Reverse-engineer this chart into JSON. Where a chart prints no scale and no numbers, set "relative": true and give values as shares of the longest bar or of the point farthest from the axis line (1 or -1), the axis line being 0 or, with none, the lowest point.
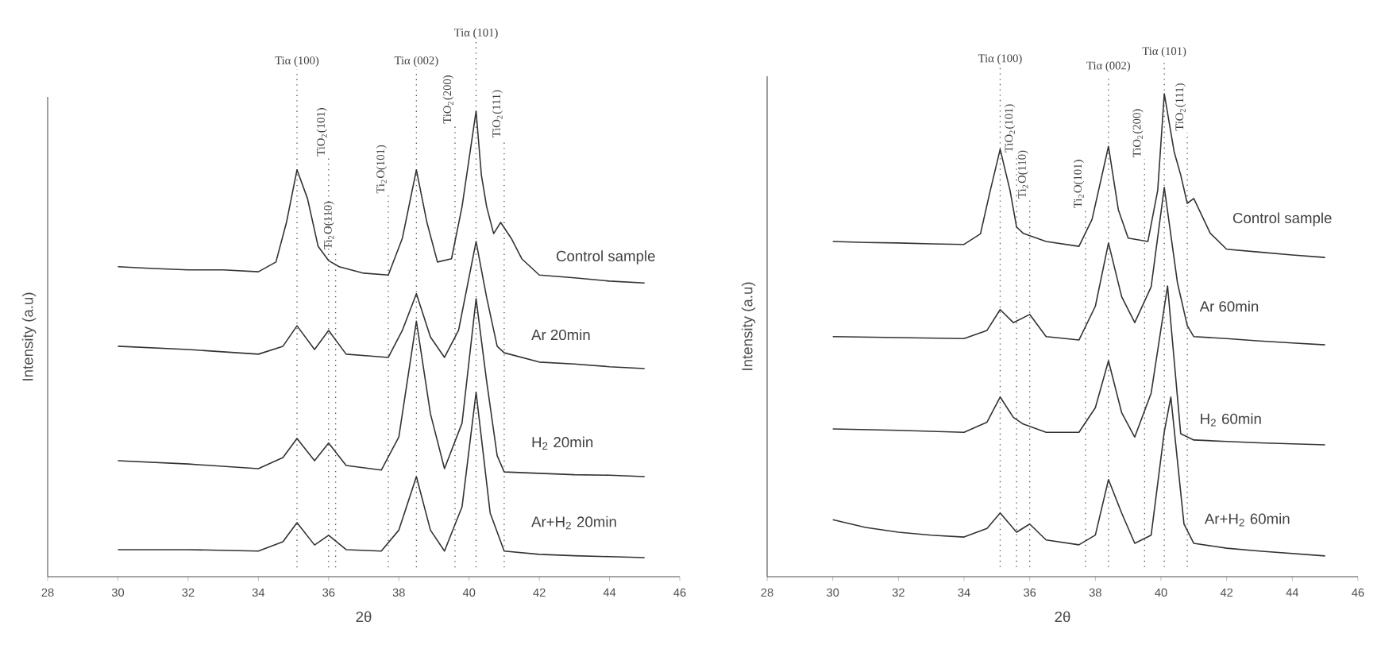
{
  "chart_data": [
    {
      "type": "line",
      "relative": true,
      "xlabel": "2θ",
      "ylabel": "Intensity (a.u)",
      "xlim": [
        28,
        46
      ],
      "xticks": [
        28,
        30,
        32,
        34,
        36,
        38,
        40,
        42,
        44,
        46
      ],
      "series": [
        {
          "name": "Control sample",
          "color": "#333333",
          "x": [
            30,
            31,
            32,
            33,
            34,
            34.5,
            34.8,
            35.1,
            35.4,
            35.7,
            36.0,
            36.3,
            37,
            37.7,
            38.1,
            38.5,
            38.8,
            39.1,
            39.5,
            39.8,
            40.2,
            40.35,
            40.5,
            40.7,
            40.9,
            41.2,
            41.5,
            42,
            43,
            44,
            45
          ],
          "values": [
            0.666,
            0.662,
            0.659,
            0.659,
            0.655,
            0.676,
            0.761,
            0.874,
            0.812,
            0.71,
            0.679,
            0.666,
            0.652,
            0.648,
            0.727,
            0.874,
            0.761,
            0.676,
            0.683,
            0.795,
            1.0,
            0.863,
            0.795,
            0.737,
            0.761,
            0.727,
            0.683,
            0.648,
            0.642,
            0.635,
            0.631
          ]
        },
        {
          "name": "Ar 20min",
          "color": "#333333",
          "x": [
            30,
            32,
            34,
            34.7,
            35.1,
            35.6,
            36.0,
            36.5,
            37.2,
            37.7,
            38.1,
            38.5,
            38.9,
            39.3,
            39.7,
            40.2,
            40.5,
            40.8,
            41,
            42,
            43,
            44,
            45
          ],
          "values": [
            0.495,
            0.488,
            0.478,
            0.495,
            0.539,
            0.488,
            0.529,
            0.478,
            0.474,
            0.471,
            0.529,
            0.608,
            0.515,
            0.471,
            0.529,
            0.72,
            0.6,
            0.495,
            0.481,
            0.461,
            0.457,
            0.451,
            0.447
          ]
        },
        {
          "name": "H$_{2}$ 20min",
          "color": "#333333",
          "x": [
            30,
            32,
            34,
            34.7,
            35.1,
            35.6,
            36.0,
            36.5,
            37.5,
            38.0,
            38.5,
            38.9,
            39.3,
            39.8,
            40.2,
            40.5,
            40.8,
            41,
            42,
            43,
            44,
            45
          ],
          "values": [
            0.249,
            0.242,
            0.232,
            0.256,
            0.297,
            0.249,
            0.287,
            0.239,
            0.229,
            0.3,
            0.549,
            0.35,
            0.232,
            0.33,
            0.597,
            0.42,
            0.26,
            0.225,
            0.222,
            0.219,
            0.218,
            0.215
          ]
        },
        {
          "name": "Ar+H$_{2}$ 20min",
          "color": "#333333",
          "x": [
            30,
            32,
            34,
            34.7,
            35.1,
            35.6,
            36.0,
            36.5,
            37.5,
            38.0,
            38.5,
            38.9,
            39.3,
            39.8,
            40.2,
            40.6,
            41,
            42,
            43,
            44,
            45
          ],
          "values": [
            0.058,
            0.058,
            0.055,
            0.075,
            0.116,
            0.068,
            0.089,
            0.058,
            0.055,
            0.1,
            0.215,
            0.1,
            0.055,
            0.15,
            0.396,
            0.137,
            0.055,
            0.048,
            0.045,
            0.043,
            0.041
          ]
        }
      ],
      "ref_lines": [
        {
          "axis": "x",
          "value": 35.1,
          "label": "Tiα (100)",
          "color": "#555555",
          "line_style": "dotted"
        },
        {
          "axis": "x",
          "value": 36.0,
          "label": "TiO$_{2}$(101)",
          "color": "#555555",
          "line_style": "dotted"
        },
        {
          "axis": "x",
          "value": 36.2,
          "label": "Ti$_{2}$O(110)",
          "color": "#555555",
          "line_style": "dotted"
        },
        {
          "axis": "x",
          "value": 37.7,
          "label": "Ti$_{2}$O(101)",
          "color": "#555555",
          "line_style": "dotted"
        },
        {
          "axis": "x",
          "value": 38.5,
          "label": "Tiα (002)",
          "color": "#555555",
          "line_style": "dotted"
        },
        {
          "axis": "x",
          "value": 39.6,
          "label": "TiO$_{2}$(200)",
          "color": "#555555",
          "line_style": "dotted"
        },
        {
          "axis": "x",
          "value": 40.2,
          "label": "Tiα (101)",
          "color": "#555555",
          "line_style": "dotted"
        },
        {
          "axis": "x",
          "value": 41.0,
          "label": "TiO$_{2}$(111)",
          "color": "#555555",
          "line_style": "dotted"
        }
      ]
    },
    {
      "type": "line",
      "relative": true,
      "xlabel": "2θ",
      "ylabel": "Intensity (a.u)",
      "xlim": [
        28,
        46
      ],
      "xticks": [
        28,
        30,
        32,
        34,
        36,
        38,
        40,
        42,
        44,
        46
      ],
      "series": [
        {
          "name": "Control sample",
          "color": "#333333",
          "x": [
            30,
            31,
            32,
            33,
            34,
            34.5,
            34.8,
            35.1,
            35.4,
            35.6,
            35.8,
            36.5,
            37.5,
            37.9,
            38.4,
            38.7,
            39.0,
            39.6,
            39.9,
            40.1,
            40.4,
            40.6,
            40.8,
            41.0,
            41.5,
            42,
            43,
            44,
            45
          ],
          "values": [
            0.694,
            0.692,
            0.691,
            0.689,
            0.688,
            0.71,
            0.8,
            0.885,
            0.8,
            0.724,
            0.711,
            0.694,
            0.684,
            0.74,
            0.891,
            0.76,
            0.701,
            0.694,
            0.8,
            1.0,
            0.88,
            0.832,
            0.773,
            0.783,
            0.711,
            0.678,
            0.672,
            0.666,
            0.661
          ]
        },
        {
          "name": "Ar 60min",
          "color": "#333333",
          "x": [
            30,
            32,
            34,
            34.7,
            35.1,
            35.5,
            36.0,
            36.5,
            37.5,
            38.0,
            38.4,
            38.8,
            39.2,
            39.7,
            40.1,
            40.5,
            40.8,
            41,
            42,
            43,
            44,
            45
          ],
          "values": [
            0.497,
            0.495,
            0.493,
            0.51,
            0.553,
            0.526,
            0.543,
            0.497,
            0.49,
            0.56,
            0.691,
            0.58,
            0.526,
            0.6,
            0.806,
            0.609,
            0.52,
            0.497,
            0.493,
            0.488,
            0.484,
            0.48
          ]
        },
        {
          "name": "H$_{2}$ 60min",
          "color": "#333333",
          "x": [
            30,
            32,
            34,
            34.7,
            35.1,
            35.5,
            35.8,
            36.5,
            37.5,
            38.0,
            38.4,
            38.8,
            39.2,
            39.7,
            40.2,
            40.6,
            41,
            42,
            43,
            44,
            45
          ],
          "values": [
            0.306,
            0.303,
            0.299,
            0.32,
            0.372,
            0.33,
            0.316,
            0.299,
            0.299,
            0.35,
            0.447,
            0.34,
            0.289,
            0.38,
            0.602,
            0.296,
            0.283,
            0.28,
            0.277,
            0.275,
            0.273
          ]
        },
        {
          "name": "Ar+H$_{2}$ 60min",
          "color": "#333333",
          "x": [
            30,
            31,
            32,
            33,
            34,
            34.7,
            35.1,
            35.6,
            36.0,
            36.5,
            37.5,
            38.0,
            38.4,
            38.8,
            39.2,
            39.7,
            40.1,
            40.3,
            40.7,
            41,
            42,
            43,
            44,
            45
          ],
          "values": [
            0.118,
            0.102,
            0.092,
            0.086,
            0.082,
            0.1,
            0.132,
            0.092,
            0.109,
            0.076,
            0.066,
            0.086,
            0.201,
            0.132,
            0.069,
            0.086,
            0.3,
            0.372,
            0.109,
            0.069,
            0.059,
            0.053,
            0.048,
            0.043
          ]
        }
      ],
      "ref_lines": [
        {
          "axis": "x",
          "value": 35.1,
          "label": "Tiα (100)",
          "color": "#555555",
          "line_style": "dotted"
        },
        {
          "axis": "x",
          "value": 35.6,
          "label": "TiO$_{2}$(101)",
          "color": "#555555",
          "line_style": "dotted"
        },
        {
          "axis": "x",
          "value": 36.0,
          "label": "Ti$_{2}$O(110)",
          "color": "#555555",
          "line_style": "dotted"
        },
        {
          "axis": "x",
          "value": 37.7,
          "label": "Ti$_{2}$O(101)",
          "color": "#555555",
          "line_style": "dotted"
        },
        {
          "axis": "x",
          "value": 38.4,
          "label": "Tiα (002)",
          "color": "#555555",
          "line_style": "dotted"
        },
        {
          "axis": "x",
          "value": 39.5,
          "label": "TiO$_{2}$(200)",
          "color": "#555555",
          "line_style": "dotted"
        },
        {
          "axis": "x",
          "value": 40.1,
          "label": "Tiα (101)",
          "color": "#555555",
          "line_style": "dotted"
        },
        {
          "axis": "x",
          "value": 40.8,
          "label": "TiO$_{2}$(111)",
          "color": "#555555",
          "line_style": "dotted"
        }
      ]
    }
  ]
}
